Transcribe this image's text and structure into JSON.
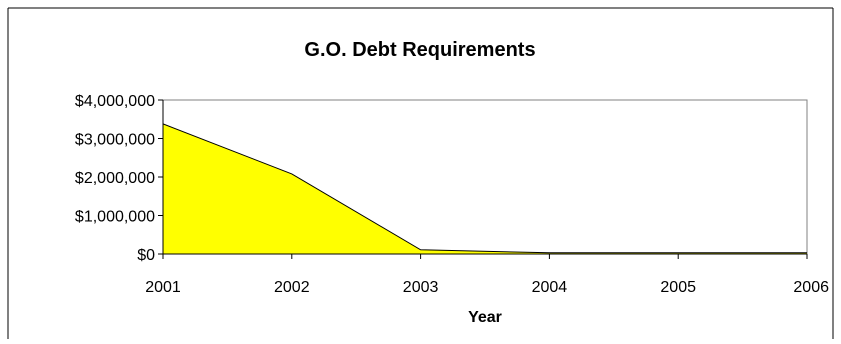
{
  "chart_data": {
    "type": "area",
    "title": "G.O. Debt Requirements",
    "xlabel": "Year",
    "ylabel": "",
    "x": [
      "2001",
      "2002",
      "2003",
      "2004",
      "2005",
      "2006"
    ],
    "series": [
      {
        "values": [
          3380000,
          2080000,
          110000,
          30000,
          30000,
          30000
        ]
      }
    ],
    "ylim": [
      0,
      4000000
    ],
    "yticks": [
      0,
      1000000,
      2000000,
      3000000,
      4000000
    ],
    "ytick_labels": [
      "$0",
      "$1,000,000",
      "$2,000,000",
      "$3,000,000",
      "$4,000,000"
    ],
    "grid": false,
    "legend": "none",
    "colors": {
      "area_fill": "#FFFF00",
      "line": "#000000",
      "plot_border": "#808080"
    }
  }
}
